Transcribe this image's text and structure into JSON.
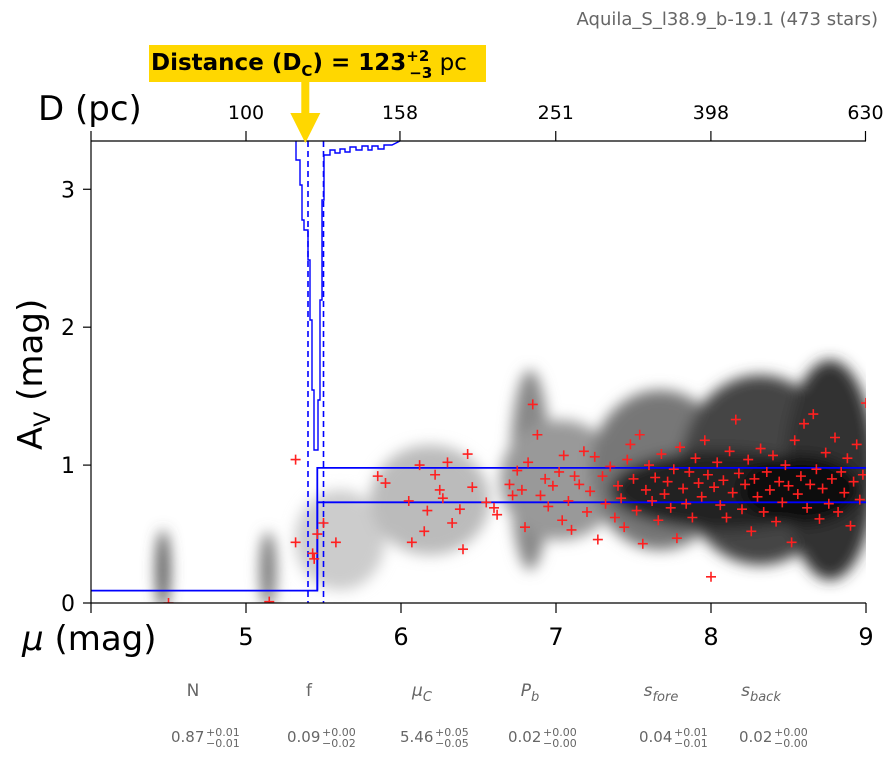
{
  "header": {
    "source_label": "Aquila_S_l38.9_b-19.1 (473 stars)"
  },
  "callout": {
    "prefix": "Distance",
    "sym": "(D",
    "sub": "C",
    "close": ") = 123",
    "sup": "+2",
    "inf": "−3",
    "unit": "pc",
    "color": "#FFD700"
  },
  "chart_data": {
    "type": "scatter",
    "xlabel_mu": "μ",
    "xlabel_unit": "(mag)",
    "ylabel_main": "A",
    "ylabel_sub": "V",
    "ylabel_unit": "(mag)",
    "top_axis_label": "D (pc)",
    "xlim": [
      4,
      9
    ],
    "ylim": [
      0,
      3.35
    ],
    "x_ticks": [
      "5",
      "6",
      "7",
      "8",
      "9"
    ],
    "y_ticks": [
      "0",
      "1",
      "2",
      "3"
    ],
    "top_ticks": [
      "100",
      "158",
      "251",
      "398",
      "630"
    ],
    "colors": {
      "model": "#0000ff",
      "stars": "#ff2020"
    },
    "distance_pc": 123,
    "mu_best": 5.46,
    "mu_bounds": [
      5.4,
      5.5
    ],
    "model_steps": [
      {
        "mu0": 4.0,
        "mu1": 5.46,
        "av": 0.09
      },
      {
        "mu0": 5.46,
        "mu1": 9.0,
        "av_low": 0.73,
        "av_high": 0.98
      }
    ],
    "stars": [
      [
        4.5,
        0.0
      ],
      [
        5.15,
        0.01
      ],
      [
        5.32,
        1.04
      ],
      [
        5.32,
        0.44
      ],
      [
        5.43,
        0.36
      ],
      [
        5.44,
        0.32
      ],
      [
        5.46,
        0.5
      ],
      [
        5.5,
        0.58
      ],
      [
        5.58,
        0.44
      ],
      [
        5.85,
        0.92
      ],
      [
        5.9,
        0.87
      ],
      [
        6.05,
        0.74
      ],
      [
        6.07,
        0.44
      ],
      [
        6.12,
        1.0
      ],
      [
        6.15,
        0.52
      ],
      [
        6.17,
        0.67
      ],
      [
        6.22,
        0.93
      ],
      [
        6.25,
        0.82
      ],
      [
        6.27,
        0.76
      ],
      [
        6.3,
        1.02
      ],
      [
        6.33,
        0.58
      ],
      [
        6.38,
        0.68
      ],
      [
        6.4,
        0.39
      ],
      [
        6.43,
        1.08
      ],
      [
        6.46,
        0.84
      ],
      [
        6.55,
        0.73
      ],
      [
        6.6,
        0.69
      ],
      [
        6.62,
        0.64
      ],
      [
        6.7,
        0.86
      ],
      [
        6.72,
        0.78
      ],
      [
        6.75,
        0.96
      ],
      [
        6.78,
        0.82
      ],
      [
        6.8,
        0.55
      ],
      [
        6.82,
        1.02
      ],
      [
        6.85,
        1.44
      ],
      [
        6.88,
        1.22
      ],
      [
        6.9,
        0.78
      ],
      [
        6.93,
        0.9
      ],
      [
        6.95,
        0.7
      ],
      [
        6.98,
        0.85
      ],
      [
        7.02,
        0.95
      ],
      [
        7.04,
        0.6
      ],
      [
        7.05,
        1.07
      ],
      [
        7.08,
        0.74
      ],
      [
        7.1,
        0.53
      ],
      [
        7.12,
        0.92
      ],
      [
        7.15,
        0.86
      ],
      [
        7.18,
        1.1
      ],
      [
        7.2,
        0.66
      ],
      [
        7.22,
        0.81
      ],
      [
        7.25,
        1.06
      ],
      [
        7.27,
        0.46
      ],
      [
        7.3,
        0.92
      ],
      [
        7.32,
        0.72
      ],
      [
        7.35,
        0.99
      ],
      [
        7.38,
        0.62
      ],
      [
        7.4,
        0.85
      ],
      [
        7.42,
        0.76
      ],
      [
        7.44,
        0.55
      ],
      [
        7.46,
        1.04
      ],
      [
        7.48,
        1.15
      ],
      [
        7.5,
        0.9
      ],
      [
        7.52,
        0.67
      ],
      [
        7.54,
        1.22
      ],
      [
        7.56,
        0.43
      ],
      [
        7.58,
        0.82
      ],
      [
        7.6,
        1.0
      ],
      [
        7.62,
        0.74
      ],
      [
        7.64,
        0.91
      ],
      [
        7.66,
        0.6
      ],
      [
        7.68,
        1.08
      ],
      [
        7.7,
        0.79
      ],
      [
        7.72,
        0.88
      ],
      [
        7.74,
        0.69
      ],
      [
        7.76,
        0.97
      ],
      [
        7.78,
        0.47
      ],
      [
        7.8,
        1.13
      ],
      [
        7.82,
        0.83
      ],
      [
        7.84,
        0.72
      ],
      [
        7.86,
        0.95
      ],
      [
        7.88,
        0.62
      ],
      [
        7.9,
        1.05
      ],
      [
        7.92,
        0.87
      ],
      [
        7.94,
        0.77
      ],
      [
        7.96,
        1.18
      ],
      [
        7.98,
        0.93
      ],
      [
        8.0,
        0.19
      ],
      [
        8.02,
        0.84
      ],
      [
        8.04,
        1.02
      ],
      [
        8.06,
        0.71
      ],
      [
        8.08,
        0.89
      ],
      [
        8.1,
        0.62
      ],
      [
        8.12,
        1.1
      ],
      [
        8.14,
        0.8
      ],
      [
        8.16,
        1.33
      ],
      [
        8.18,
        0.94
      ],
      [
        8.2,
        0.68
      ],
      [
        8.22,
        0.86
      ],
      [
        8.24,
        1.04
      ],
      [
        8.26,
        0.52
      ],
      [
        8.28,
        0.9
      ],
      [
        8.3,
        0.77
      ],
      [
        8.32,
        1.12
      ],
      [
        8.34,
        0.66
      ],
      [
        8.36,
        0.95
      ],
      [
        8.38,
        0.82
      ],
      [
        8.4,
        1.07
      ],
      [
        8.42,
        0.59
      ],
      [
        8.44,
        0.88
      ],
      [
        8.46,
        0.73
      ],
      [
        8.48,
        1.0
      ],
      [
        8.5,
        0.85
      ],
      [
        8.52,
        0.44
      ],
      [
        8.54,
        1.18
      ],
      [
        8.56,
        0.79
      ],
      [
        8.58,
        0.92
      ],
      [
        8.6,
        1.3
      ],
      [
        8.62,
        0.69
      ],
      [
        8.64,
        0.86
      ],
      [
        8.66,
        1.37
      ],
      [
        8.68,
        0.97
      ],
      [
        8.7,
        0.61
      ],
      [
        8.72,
        0.83
      ],
      [
        8.74,
        1.09
      ],
      [
        8.76,
        0.72
      ],
      [
        8.78,
        0.9
      ],
      [
        8.8,
        1.2
      ],
      [
        8.82,
        0.66
      ],
      [
        8.84,
        0.95
      ],
      [
        8.86,
        0.8
      ],
      [
        8.88,
        1.05
      ],
      [
        8.9,
        0.56
      ],
      [
        8.92,
        0.88
      ],
      [
        8.94,
        1.15
      ],
      [
        8.96,
        0.75
      ],
      [
        8.98,
        0.93
      ],
      [
        9.0,
        1.45
      ]
    ]
  },
  "params": {
    "headers": [
      {
        "base": "N",
        "sub": ""
      },
      {
        "base": "f",
        "sub": ""
      },
      {
        "base": "μ",
        "sub": "C"
      },
      {
        "base": "P",
        "sub": "b"
      },
      {
        "base": "s",
        "sub": "fore"
      },
      {
        "base": "s",
        "sub": "back"
      }
    ],
    "values": [
      {
        "v": "0.87",
        "sup": "+0.01",
        "inf": "−0.01"
      },
      {
        "v": "0.09",
        "sup": "+0.00",
        "inf": "−0.02"
      },
      {
        "v": "5.46",
        "sup": "+0.05",
        "inf": "−0.05"
      },
      {
        "v": "0.02",
        "sup": "+0.00",
        "inf": "−0.00"
      },
      {
        "v": "0.04",
        "sup": "+0.01",
        "inf": "−0.01"
      },
      {
        "v": "0.02",
        "sup": "+0.00",
        "inf": "−0.00"
      }
    ]
  }
}
